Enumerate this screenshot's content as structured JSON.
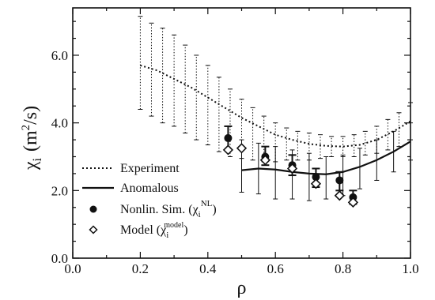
{
  "chart_data": {
    "type": "line",
    "xlabel": "ρ",
    "ylabel": {
      "symbol": "χ",
      "sub": "i",
      "unit": "(m",
      "sup": "2",
      "unit_end": "/s)"
    },
    "xlim": [
      0.0,
      1.0
    ],
    "ylim": [
      0.0,
      7.4
    ],
    "x_ticks": [
      0.0,
      0.2,
      0.4,
      0.6,
      0.8,
      1.0
    ],
    "x_tick_labels": [
      "0.0",
      "0.2",
      "0.4",
      "0.6",
      "0.8",
      "1.0"
    ],
    "y_ticks": [
      0.0,
      2.0,
      4.0,
      6.0
    ],
    "y_tick_labels": [
      "0.0",
      "2.0",
      "4.0",
      "6.0"
    ],
    "grid": false,
    "legend_position": "bottom-left",
    "series": [
      {
        "name": "Experiment",
        "style": "dotted",
        "x": [
          0.2,
          0.25,
          0.3,
          0.35,
          0.4,
          0.45,
          0.5,
          0.55,
          0.6,
          0.65,
          0.7,
          0.75,
          0.8,
          0.85,
          0.9,
          0.95,
          1.0
        ],
        "y": [
          5.7,
          5.55,
          5.3,
          5.05,
          4.75,
          4.45,
          4.15,
          3.9,
          3.65,
          3.5,
          3.38,
          3.32,
          3.3,
          3.35,
          3.5,
          3.75,
          4.05
        ],
        "err_x": [
          0.2,
          0.233,
          0.266,
          0.3,
          0.333,
          0.366,
          0.4,
          0.433,
          0.466,
          0.5,
          0.533,
          0.566,
          0.6,
          0.633,
          0.666,
          0.7,
          0.733,
          0.766,
          0.8,
          0.833,
          0.866,
          0.9,
          0.933,
          0.966,
          1.0
        ],
        "err_lo": [
          4.4,
          4.2,
          4.0,
          3.9,
          3.7,
          3.5,
          3.35,
          3.15,
          3.0,
          2.95,
          2.9,
          2.85,
          2.85,
          2.9,
          2.9,
          2.9,
          2.95,
          3.0,
          3.0,
          3.0,
          3.05,
          3.1,
          3.2,
          3.3,
          3.5
        ],
        "err_hi": [
          7.15,
          6.95,
          6.8,
          6.6,
          6.3,
          6.0,
          5.7,
          5.35,
          5.0,
          4.7,
          4.45,
          4.2,
          4.0,
          3.85,
          3.75,
          3.7,
          3.65,
          3.6,
          3.6,
          3.65,
          3.75,
          3.9,
          4.1,
          4.3,
          4.6
        ]
      },
      {
        "name": "Anomalous",
        "style": "solid",
        "x": [
          0.5,
          0.55,
          0.6,
          0.65,
          0.7,
          0.75,
          0.8,
          0.85,
          0.9,
          0.95,
          1.0
        ],
        "y": [
          2.6,
          2.65,
          2.62,
          2.55,
          2.5,
          2.48,
          2.55,
          2.7,
          2.9,
          3.15,
          3.45
        ],
        "err_x": [
          0.5,
          0.55,
          0.6,
          0.65,
          0.7,
          0.75,
          0.8,
          0.85,
          0.9,
          0.95,
          1.0
        ],
        "err_lo": [
          1.95,
          1.9,
          1.75,
          1.75,
          1.7,
          1.75,
          1.85,
          2.05,
          2.3,
          2.55,
          2.9
        ],
        "err_hi": [
          3.5,
          3.4,
          3.3,
          3.2,
          3.1,
          3.0,
          3.05,
          3.25,
          3.5,
          3.75,
          4.0
        ]
      },
      {
        "name": "Nonlin. Sim.",
        "legend_math": {
          "symbol": "χ",
          "sub": "i",
          "sup": "NL"
        },
        "marker": "filled-circle",
        "x": [
          0.46,
          0.57,
          0.65,
          0.72,
          0.79,
          0.83
        ],
        "y": [
          3.55,
          3.0,
          2.75,
          2.4,
          2.3,
          1.8
        ],
        "err_lo": [
          3.2,
          2.75,
          2.45,
          2.1,
          2.0,
          1.6
        ],
        "err_hi": [
          3.9,
          3.3,
          3.05,
          2.65,
          2.55,
          2.0
        ]
      },
      {
        "name": "Model",
        "legend_math": {
          "symbol": "χ",
          "sub": "i",
          "sup": "model"
        },
        "marker": "open-diamond",
        "x": [
          0.46,
          0.5,
          0.57,
          0.65,
          0.72,
          0.79,
          0.83
        ],
        "y": [
          3.2,
          3.25,
          2.9,
          2.65,
          2.2,
          1.85,
          1.65
        ]
      }
    ]
  },
  "colors": {
    "ink": "#111111",
    "background": "#ffffff"
  }
}
